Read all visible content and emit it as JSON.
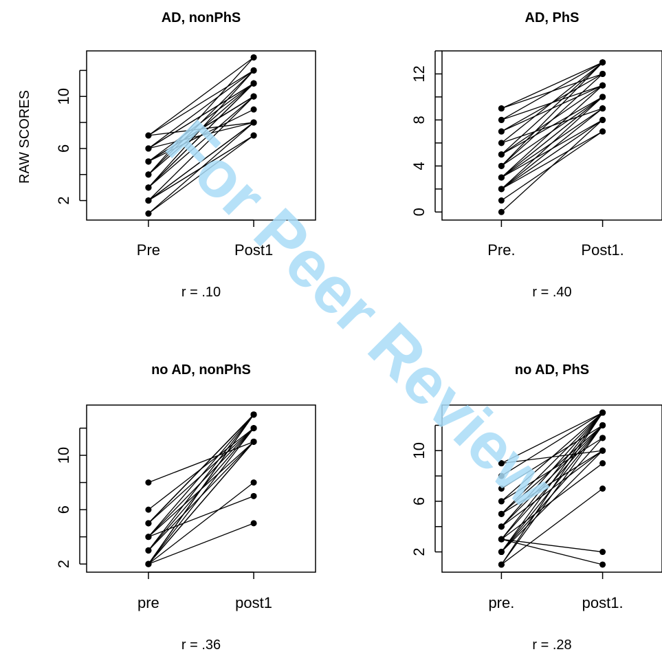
{
  "figure": {
    "y_axis_label": "RAW SCORES",
    "watermark": "For Peer Review",
    "watermark_color": "#a9dcf7"
  },
  "chart_data": [
    {
      "type": "line",
      "title": "AD, nonPhS",
      "xlabel": "",
      "ylabel": "RAW SCORES",
      "categories": [
        "Pre",
        "Post1"
      ],
      "ylim": [
        0.5,
        13.5
      ],
      "yticks": [
        2,
        6,
        10
      ],
      "annotation": "r = .10",
      "pairs": [
        [
          7,
          13
        ],
        [
          7,
          12
        ],
        [
          6,
          12
        ],
        [
          6,
          11
        ],
        [
          6,
          11
        ],
        [
          5,
          11
        ],
        [
          5,
          10
        ],
        [
          5,
          10
        ],
        [
          5,
          10
        ],
        [
          5,
          9
        ],
        [
          4,
          13
        ],
        [
          4,
          12
        ],
        [
          4,
          11
        ],
        [
          3,
          11
        ],
        [
          3,
          11
        ],
        [
          3,
          10
        ],
        [
          2,
          8
        ],
        [
          2,
          8
        ],
        [
          2,
          7
        ],
        [
          2,
          7
        ],
        [
          1,
          8
        ],
        [
          1,
          7
        ],
        [
          6,
          8
        ],
        [
          7,
          8
        ],
        [
          2,
          10
        ],
        [
          3,
          12
        ]
      ]
    },
    {
      "type": "line",
      "title": "AD, PhS",
      "xlabel": "",
      "ylabel": "",
      "categories": [
        "Pre.",
        "Post1."
      ],
      "ylim": [
        -0.7,
        14
      ],
      "yticks": [
        0,
        4,
        8,
        12
      ],
      "annotation": "r = .40",
      "pairs": [
        [
          9,
          13
        ],
        [
          9,
          12
        ],
        [
          8,
          13
        ],
        [
          7,
          12
        ],
        [
          7,
          11
        ],
        [
          6,
          13
        ],
        [
          5,
          11
        ],
        [
          5,
          10
        ],
        [
          4,
          13
        ],
        [
          4,
          12
        ],
        [
          4,
          10
        ],
        [
          3,
          11
        ],
        [
          3,
          10
        ],
        [
          3,
          9
        ],
        [
          3,
          8
        ],
        [
          2,
          9
        ],
        [
          2,
          10
        ],
        [
          2,
          8
        ],
        [
          1,
          7
        ],
        [
          0,
          8
        ],
        [
          6,
          9
        ],
        [
          2,
          7
        ],
        [
          5,
          13
        ],
        [
          8,
          11
        ]
      ]
    },
    {
      "type": "line",
      "title": "no AD, nonPhS",
      "xlabel": "",
      "ylabel": "",
      "categories": [
        "pre",
        "post1"
      ],
      "ylim": [
        1.4,
        13.7
      ],
      "yticks": [
        2,
        6,
        10
      ],
      "annotation": "r = .36",
      "pairs": [
        [
          8,
          11
        ],
        [
          6,
          12
        ],
        [
          5,
          13
        ],
        [
          5,
          13
        ],
        [
          5,
          12
        ],
        [
          4,
          13
        ],
        [
          4,
          12
        ],
        [
          4,
          11
        ],
        [
          4,
          7
        ],
        [
          3,
          13
        ],
        [
          3,
          12
        ],
        [
          2,
          13
        ],
        [
          2,
          13
        ],
        [
          2,
          12
        ],
        [
          2,
          11
        ],
        [
          2,
          11
        ],
        [
          2,
          8
        ],
        [
          2,
          5
        ],
        [
          3,
          11
        ],
        [
          5,
          13
        ]
      ]
    },
    {
      "type": "line",
      "title": "no AD, PhS",
      "xlabel": "",
      "ylabel": "",
      "categories": [
        "pre.",
        "post1."
      ],
      "ylim": [
        0.4,
        13.6
      ],
      "yticks": [
        2,
        6,
        10
      ],
      "annotation": "r = .28",
      "pairs": [
        [
          9,
          13
        ],
        [
          9,
          10
        ],
        [
          8,
          13
        ],
        [
          7,
          12
        ],
        [
          6,
          13
        ],
        [
          6,
          11
        ],
        [
          5,
          12
        ],
        [
          5,
          10
        ],
        [
          4,
          13
        ],
        [
          4,
          12
        ],
        [
          3,
          13
        ],
        [
          3,
          12
        ],
        [
          3,
          9
        ],
        [
          3,
          2
        ],
        [
          3,
          1
        ],
        [
          2,
          13
        ],
        [
          2,
          12
        ],
        [
          2,
          10
        ],
        [
          1,
          13
        ],
        [
          1,
          12
        ],
        [
          1,
          7
        ],
        [
          2,
          11
        ],
        [
          5,
          13
        ],
        [
          4,
          10
        ]
      ]
    }
  ]
}
